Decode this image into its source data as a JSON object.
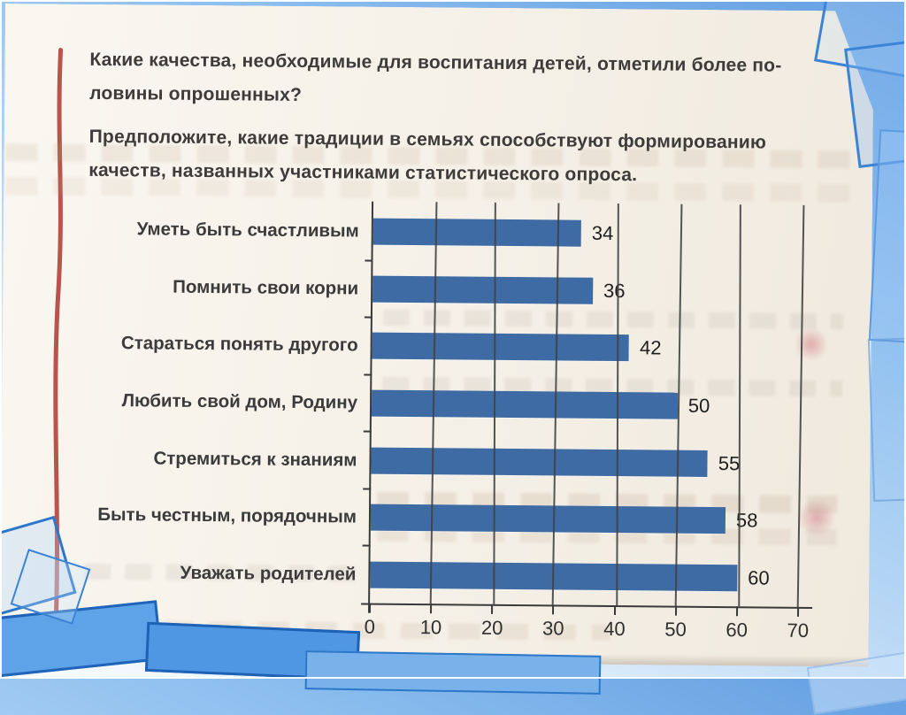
{
  "question": {
    "lines": [
      "Какие качества, необходимые для воспитания детей, отметили более по-",
      "ловины опрошенных?",
      "Предположите, какие традиции в семьях способствуют формированию",
      "качеств, названных участниками статистического опроса."
    ]
  },
  "chart_data": {
    "type": "bar",
    "orientation": "horizontal",
    "title": "",
    "categories": [
      "Уметь быть счастливым",
      "Помнить свои корни",
      "Стараться понять другого",
      "Любить свой дом, Родину",
      "Стремиться к знаниям",
      "Быть честным, порядочным",
      "Уважать родителей"
    ],
    "values": [
      34,
      36,
      42,
      50,
      55,
      58,
      60
    ],
    "xlim": [
      0,
      70
    ],
    "x_ticks": [
      0,
      10,
      20,
      30,
      40,
      50,
      60,
      70
    ],
    "grid": "vertical",
    "legend": "none",
    "value_labels": true
  },
  "colors": {
    "bar_blue": "#3e6ba3",
    "margin_line_red": "#b2453f",
    "slide_background_blue": "#8fc0ef",
    "axis": "#3a3a3a",
    "text": "#3e3c3a"
  }
}
